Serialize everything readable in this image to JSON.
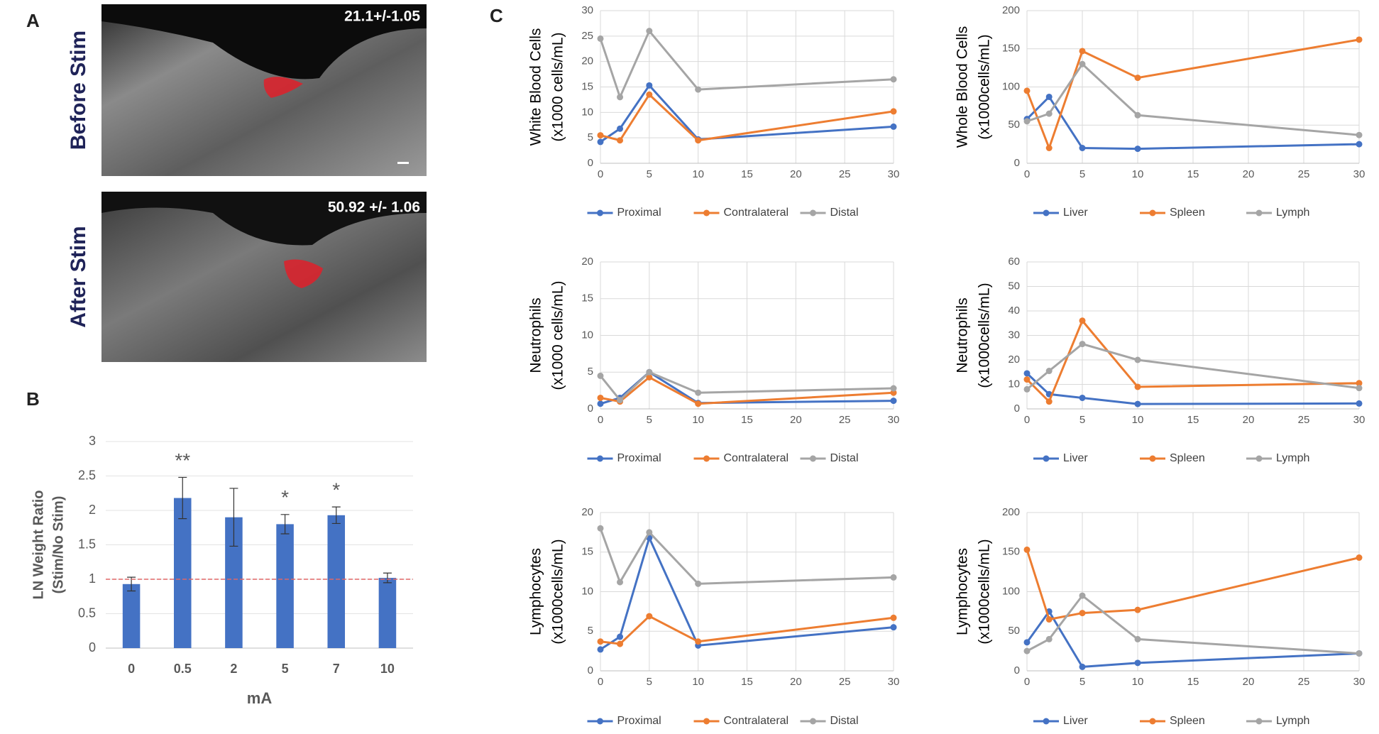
{
  "panel_labels": [
    "A",
    "B",
    "C"
  ],
  "images": [
    {
      "label": "Before Stim",
      "annotation": "21.1+/-1.05"
    },
    {
      "label": "After Stim",
      "annotation": "50.92 +/- 1.06"
    }
  ],
  "chart_data": [
    {
      "type": "bar",
      "categories": [
        "0",
        "0.5",
        "2",
        "5",
        "7",
        "10"
      ],
      "values": [
        0.93,
        2.18,
        1.9,
        1.8,
        1.93,
        1.02
      ],
      "errors": [
        0.1,
        0.3,
        0.42,
        0.14,
        0.12,
        0.07
      ],
      "annotations": [
        null,
        "**",
        null,
        "*",
        "*",
        null
      ],
      "color": "#4472c4",
      "reference_line": 1,
      "reference_color": "#e06666",
      "ylim": [
        0,
        3
      ],
      "yticks": [
        0,
        0.5,
        1,
        1.5,
        2,
        2.5,
        3
      ],
      "ylabel": [
        "LN Weight Ratio",
        "(Stim/No Stim)"
      ],
      "xlabel": "mA",
      "grid": true
    },
    {
      "type": "line",
      "x": [
        0,
        2,
        5,
        10,
        30
      ],
      "xlim": [
        0,
        30
      ],
      "xticks": [
        0,
        5,
        10,
        15,
        20,
        25,
        30
      ],
      "ylim": [
        0,
        30
      ],
      "yticks": [
        0,
        5,
        10,
        15,
        20,
        25,
        30
      ],
      "ylabel": [
        "White Blood Cells",
        "(x1000 cells/mL)"
      ],
      "grid": true,
      "series": [
        {
          "name": "Proximal",
          "color": "#4472c4",
          "values": [
            4.2,
            6.8,
            15.3,
            4.7,
            7.2
          ]
        },
        {
          "name": "Contralateral",
          "color": "#ed7d31",
          "values": [
            5.5,
            4.5,
            13.5,
            4.5,
            10.2
          ]
        },
        {
          "name": "Distal",
          "color": "#a5a5a5",
          "values": [
            24.5,
            13,
            26,
            14.5,
            16.5
          ]
        }
      ]
    },
    {
      "type": "line",
      "x": [
        0,
        2,
        5,
        10,
        30
      ],
      "xlim": [
        0,
        30
      ],
      "xticks": [
        0,
        5,
        10,
        15,
        20,
        25,
        30
      ],
      "ylim": [
        0,
        200
      ],
      "yticks": [
        0,
        50,
        100,
        150,
        200
      ],
      "ylabel": [
        "Whole Blood Cells",
        "(x1000cells/mL)"
      ],
      "grid": true,
      "series": [
        {
          "name": "Liver",
          "color": "#4472c4",
          "values": [
            58,
            87,
            20,
            19,
            25
          ]
        },
        {
          "name": "Spleen",
          "color": "#ed7d31",
          "values": [
            95,
            20,
            147,
            112,
            162
          ]
        },
        {
          "name": "Lymph",
          "color": "#a5a5a5",
          "values": [
            55,
            65,
            130,
            63,
            37
          ]
        }
      ]
    },
    {
      "type": "line",
      "x": [
        0,
        2,
        5,
        10,
        30
      ],
      "xlim": [
        0,
        30
      ],
      "xticks": [
        0,
        5,
        10,
        15,
        20,
        25,
        30
      ],
      "ylim": [
        0,
        20
      ],
      "yticks": [
        0,
        5,
        10,
        15,
        20
      ],
      "ylabel": [
        "Neutrophils",
        "(x1000 cells/mL)"
      ],
      "grid": true,
      "series": [
        {
          "name": "Proximal",
          "color": "#4472c4",
          "values": [
            0.7,
            1.5,
            5,
            0.8,
            1.1
          ]
        },
        {
          "name": "Contralateral",
          "color": "#ed7d31",
          "values": [
            1.5,
            1,
            4.3,
            0.7,
            2.2
          ]
        },
        {
          "name": "Distal",
          "color": "#a5a5a5",
          "values": [
            4.5,
            1.2,
            5,
            2.2,
            2.8
          ]
        }
      ]
    },
    {
      "type": "line",
      "x": [
        0,
        2,
        5,
        10,
        30
      ],
      "xlim": [
        0,
        30
      ],
      "xticks": [
        0,
        5,
        10,
        15,
        20,
        25,
        30
      ],
      "ylim": [
        0,
        60
      ],
      "yticks": [
        0,
        10,
        20,
        30,
        40,
        50,
        60
      ],
      "ylabel": [
        "Neutrophils",
        "(x1000cells/mL)"
      ],
      "grid": true,
      "series": [
        {
          "name": "Liver",
          "color": "#4472c4",
          "values": [
            14.5,
            6,
            4.5,
            2,
            2.2
          ]
        },
        {
          "name": "Spleen",
          "color": "#ed7d31",
          "values": [
            12,
            3,
            36,
            9,
            10.5
          ]
        },
        {
          "name": "Lymph",
          "color": "#a5a5a5",
          "values": [
            8,
            15.5,
            26.5,
            20,
            8.5
          ]
        }
      ]
    },
    {
      "type": "line",
      "x": [
        0,
        2,
        5,
        10,
        30
      ],
      "xlim": [
        0,
        30
      ],
      "xticks": [
        0,
        5,
        10,
        15,
        20,
        25,
        30
      ],
      "ylim": [
        0,
        20
      ],
      "yticks": [
        0,
        5,
        10,
        15,
        20
      ],
      "ylabel": [
        "Lymphocytes",
        "(x1000cells/mL)"
      ],
      "grid": true,
      "series": [
        {
          "name": "Proximal",
          "color": "#4472c4",
          "values": [
            2.7,
            4.3,
            16.8,
            3.2,
            5.5
          ]
        },
        {
          "name": "Contralateral",
          "color": "#ed7d31",
          "values": [
            3.7,
            3.4,
            6.9,
            3.7,
            6.7
          ]
        },
        {
          "name": "Distal",
          "color": "#a5a5a5",
          "values": [
            18,
            11.2,
            17.5,
            11,
            11.8
          ]
        }
      ]
    },
    {
      "type": "line",
      "x": [
        0,
        2,
        5,
        10,
        30
      ],
      "xlim": [
        0,
        30
      ],
      "xticks": [
        0,
        5,
        10,
        15,
        20,
        25,
        30
      ],
      "ylim": [
        0,
        200
      ],
      "yticks": [
        0,
        50,
        100,
        150,
        200
      ],
      "ylabel": [
        "Lymphocytes",
        "(x1000cells/mL)"
      ],
      "grid": true,
      "series": [
        {
          "name": "Liver",
          "color": "#4472c4",
          "values": [
            36,
            75,
            5,
            10,
            22
          ]
        },
        {
          "name": "Spleen",
          "color": "#ed7d31",
          "values": [
            153,
            65,
            73,
            77,
            143
          ]
        },
        {
          "name": "Lymph",
          "color": "#a5a5a5",
          "values": [
            25,
            40,
            95,
            40,
            22
          ]
        }
      ]
    }
  ]
}
